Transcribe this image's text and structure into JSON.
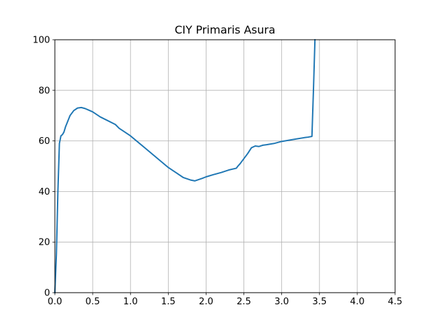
{
  "chart_data": {
    "type": "line",
    "title": "CIY Primaris Asura",
    "xlabel": "",
    "ylabel": "",
    "xlim": [
      0,
      4.5
    ],
    "ylim": [
      0,
      100
    ],
    "grid": true,
    "x_ticks": [
      0.0,
      0.5,
      1.0,
      1.5,
      2.0,
      2.5,
      3.0,
      3.5,
      4.0,
      4.5
    ],
    "x_tick_labels": [
      "0.0",
      "0.5",
      "1.0",
      "1.5",
      "2.0",
      "2.5",
      "3.0",
      "3.5",
      "4.0",
      "4.5"
    ],
    "y_ticks": [
      0,
      20,
      40,
      60,
      80,
      100
    ],
    "y_tick_labels": [
      "0",
      "20",
      "40",
      "60",
      "80",
      "100"
    ],
    "colors": {
      "line": "#1f77b4",
      "grid": "#b0b0b0",
      "axes": "#000000"
    },
    "series": [
      {
        "x": [
          0.0,
          0.02,
          0.04,
          0.06,
          0.08,
          0.1,
          0.12,
          0.14,
          0.16,
          0.2,
          0.25,
          0.3,
          0.35,
          0.4,
          0.5,
          0.6,
          0.7,
          0.8,
          0.85,
          0.9,
          1.0,
          1.1,
          1.2,
          1.3,
          1.4,
          1.5,
          1.6,
          1.7,
          1.8,
          1.85,
          1.9,
          1.95,
          2.0,
          2.1,
          2.2,
          2.3,
          2.4,
          2.42,
          2.45,
          2.5,
          2.55,
          2.6,
          2.65,
          2.7,
          2.75,
          2.8,
          2.9,
          3.0,
          3.1,
          3.2,
          3.3,
          3.35,
          3.4,
          3.42,
          3.44
        ],
        "y": [
          0,
          15,
          40,
          59,
          62,
          62.5,
          63.5,
          65.5,
          67,
          70,
          72,
          73,
          73.2,
          72.8,
          71.5,
          69.5,
          68,
          66.5,
          65,
          64,
          62,
          59.5,
          57,
          54.5,
          52,
          49.5,
          47.5,
          45.5,
          44.5,
          44.2,
          44.7,
          45.2,
          45.8,
          46.7,
          47.5,
          48.5,
          49.2,
          50,
          51,
          53,
          55,
          57.3,
          58,
          57.8,
          58.3,
          58.5,
          59,
          59.8,
          60.3,
          60.8,
          61.3,
          61.5,
          61.8,
          80,
          100
        ]
      }
    ]
  }
}
